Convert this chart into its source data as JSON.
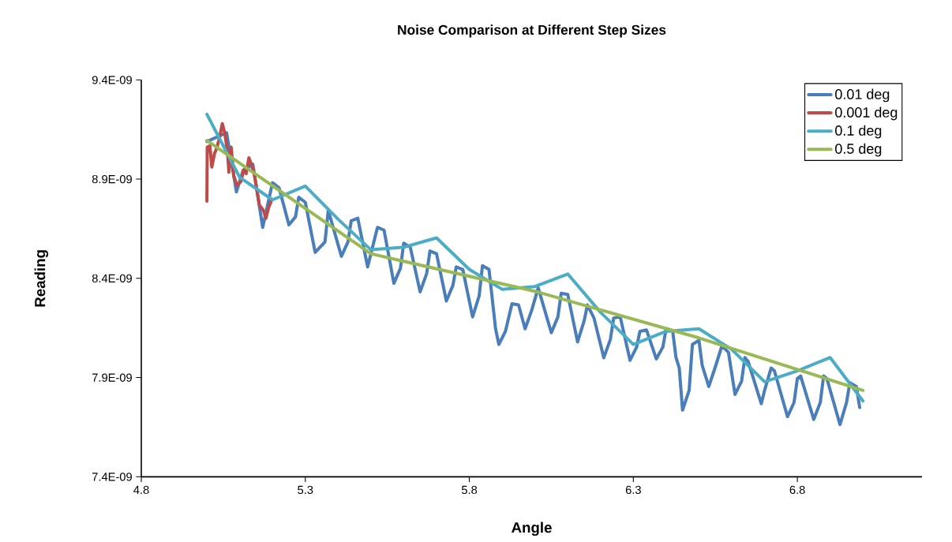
{
  "chart_data": {
    "type": "line",
    "title": "Noise Comparison at Different Step Sizes",
    "xlabel": "Angle",
    "ylabel": "Reading",
    "xlim": [
      4.8,
      7.18
    ],
    "xticks": [
      4.8,
      5.3,
      5.8,
      6.3,
      6.8
    ],
    "ylim": [
      7.4e-09,
      9.4e-09
    ],
    "yticks": [
      {
        "value": 7.4e-09,
        "label": "7.4E-09"
      },
      {
        "value": 7.9e-09,
        "label": "7.9E-09"
      },
      {
        "value": 8.4e-09,
        "label": "8.4E-09"
      },
      {
        "value": 8.9e-09,
        "label": "8.9E-09"
      },
      {
        "value": 9.4e-09,
        "label": "9.4E-09"
      }
    ],
    "grid": false,
    "legend": "top right",
    "marker": "none",
    "line_style": "solid",
    "series": [
      {
        "name": "0.01 deg",
        "color": "#4a7ebb",
        "x": [
          5.0,
          5.06,
          5.09,
          5.11,
          5.14,
          5.17,
          5.2,
          5.22,
          5.25,
          5.27,
          5.28,
          5.3,
          5.33,
          5.36,
          5.37,
          5.41,
          5.43,
          5.44,
          5.46,
          5.49,
          5.52,
          5.54,
          5.57,
          5.59,
          5.6,
          5.62,
          5.65,
          5.67,
          5.68,
          5.7,
          5.73,
          5.75,
          5.76,
          5.78,
          5.81,
          5.83,
          5.84,
          5.86,
          5.88,
          5.89,
          5.91,
          5.93,
          5.95,
          5.97,
          5.99,
          6.01,
          6.03,
          6.05,
          6.07,
          6.08,
          6.1,
          6.13,
          6.15,
          6.16,
          6.18,
          6.21,
          6.23,
          6.24,
          6.26,
          6.29,
          6.31,
          6.32,
          6.34,
          6.37,
          6.39,
          6.4,
          6.42,
          6.43,
          6.44,
          6.45,
          6.47,
          6.48,
          6.5,
          6.51,
          6.53,
          6.55,
          6.57,
          6.59,
          6.61,
          6.63,
          6.64,
          6.65,
          6.69,
          6.7,
          6.72,
          6.73,
          6.77,
          6.79,
          6.8,
          6.81,
          6.85,
          6.87,
          6.88,
          6.89,
          6.93,
          6.95,
          6.96,
          6.98,
          6.99
        ],
        "values": [
          9.09e-09,
          9.134e-09,
          8.836e-09,
          8.942e-09,
          8.975e-09,
          8.657e-09,
          8.882e-09,
          8.856e-09,
          8.67e-09,
          8.71e-09,
          8.809e-09,
          8.783e-09,
          8.531e-09,
          8.584e-09,
          8.743e-09,
          8.511e-09,
          8.584e-09,
          8.69e-09,
          8.703e-09,
          8.458e-09,
          8.657e-09,
          8.643e-09,
          8.375e-09,
          8.451e-09,
          8.577e-09,
          8.557e-09,
          8.332e-09,
          8.425e-09,
          8.538e-09,
          8.524e-09,
          8.286e-09,
          8.365e-09,
          8.458e-09,
          8.445e-09,
          8.206e-09,
          8.312e-09,
          8.464e-09,
          8.445e-09,
          8.146e-09,
          8.067e-09,
          8.133e-09,
          8.272e-09,
          8.266e-09,
          8.146e-09,
          8.239e-09,
          8.352e-09,
          8.239e-09,
          8.126e-09,
          8.206e-09,
          8.325e-09,
          8.319e-09,
          8.08e-09,
          8.186e-09,
          8.266e-09,
          8.2e-09,
          8e-09,
          8.093e-09,
          8.2e-09,
          8.206e-09,
          7.987e-09,
          8.054e-09,
          8.133e-09,
          8.14e-09,
          7.994e-09,
          8.054e-09,
          8.146e-09,
          8.133e-09,
          8.001e-09,
          7.948e-09,
          7.736e-09,
          7.835e-09,
          8.067e-09,
          8.087e-09,
          7.961e-09,
          7.855e-09,
          7.954e-09,
          8.06e-09,
          8.027e-09,
          7.815e-09,
          7.882e-09,
          8.001e-09,
          7.981e-09,
          7.768e-09,
          7.835e-09,
          7.948e-09,
          7.934e-09,
          7.703e-09,
          7.775e-09,
          7.895e-09,
          7.908e-09,
          7.689e-09,
          7.775e-09,
          7.908e-09,
          7.895e-09,
          7.663e-09,
          7.775e-09,
          7.875e-09,
          7.855e-09,
          7.749e-09
        ]
      },
      {
        "name": "0.001 deg",
        "color": "#be4b48",
        "x": [
          5.0,
          5.001,
          5.009,
          5.015,
          5.023,
          5.031,
          5.039,
          5.047,
          5.055,
          5.063,
          5.067,
          5.074,
          5.082,
          5.092,
          5.104,
          5.112,
          5.12,
          5.128,
          5.137,
          5.144,
          5.152,
          5.16,
          5.172,
          5.18,
          5.188,
          5.196
        ],
        "values": [
          8.789e-09,
          9.061e-09,
          9.068e-09,
          8.961e-09,
          9.028e-09,
          9.061e-09,
          9.114e-09,
          9.18e-09,
          9.127e-09,
          9.034e-09,
          8.935e-09,
          9.061e-09,
          8.915e-09,
          8.869e-09,
          8.889e-09,
          8.948e-09,
          8.928e-09,
          9.008e-09,
          8.968e-09,
          8.928e-09,
          8.849e-09,
          8.769e-09,
          8.743e-09,
          8.703e-09,
          8.756e-09,
          8.789e-09
        ]
      },
      {
        "name": "0.1 deg",
        "color": "#4bacc6",
        "x": [
          5.0,
          5.1,
          5.2,
          5.3,
          5.4,
          5.5,
          5.6,
          5.7,
          5.8,
          5.9,
          6.0,
          6.1,
          6.2,
          6.3,
          6.4,
          6.5,
          6.6,
          6.7,
          6.8,
          6.9,
          7.0
        ],
        "values": [
          9.227e-09,
          8.909e-09,
          8.796e-09,
          8.865e-09,
          8.698e-09,
          8.544e-09,
          8.557e-09,
          8.604e-09,
          8.445e-09,
          8.345e-09,
          8.359e-09,
          8.422e-09,
          8.229e-09,
          8.067e-09,
          8.133e-09,
          8.146e-09,
          8.042e-09,
          7.879e-09,
          7.934e-09,
          8.001e-09,
          7.782e-09
        ]
      },
      {
        "name": "0.5 deg",
        "color": "#98b954",
        "x": [
          5.0,
          5.5,
          6.0,
          6.5,
          7.0
        ],
        "values": [
          9.095e-09,
          8.524e-09,
          8.335e-09,
          8.1e-09,
          7.835e-09
        ]
      }
    ]
  }
}
